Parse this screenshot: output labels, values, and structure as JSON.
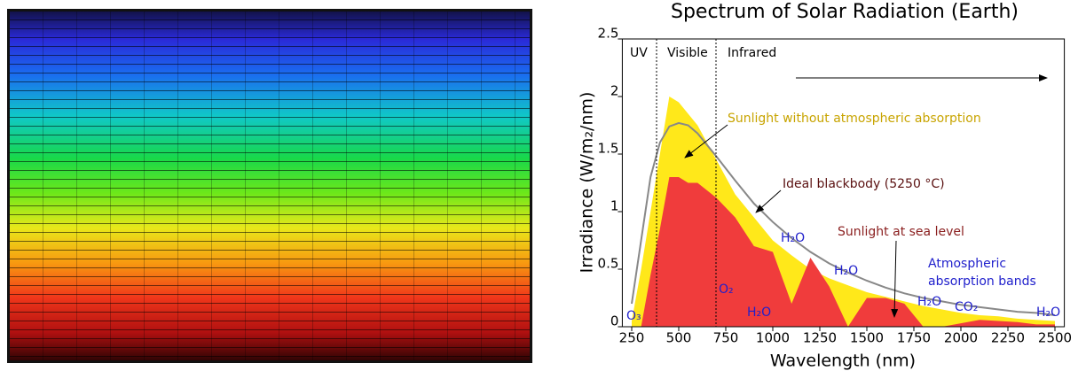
{
  "chart_data": {
    "type": "area",
    "title": "Spectrum of Solar Radiation (Earth)",
    "x_label": "Wavelength (nm)",
    "y_label": "Irradiance (W/m₂/nm)",
    "x": [
      250,
      300,
      350,
      400,
      450,
      500,
      550,
      600,
      700,
      800,
      900,
      1000,
      1100,
      1200,
      1300,
      1400,
      1500,
      1600,
      1700,
      1800,
      1900,
      2000,
      2100,
      2200,
      2300,
      2400,
      2500
    ],
    "series": [
      {
        "name": "Sunlight without atmospheric absorption",
        "color": "#ffe81a",
        "kind": "area",
        "values": [
          0.05,
          0.5,
          1.0,
          1.5,
          2.0,
          1.95,
          1.85,
          1.75,
          1.45,
          1.15,
          0.95,
          0.75,
          0.62,
          0.5,
          0.42,
          0.36,
          0.3,
          0.26,
          0.22,
          0.18,
          0.15,
          0.12,
          0.1,
          0.09,
          0.07,
          0.06,
          0.05
        ]
      },
      {
        "name": "Sunlight at sea level",
        "color": "#f03c3c",
        "kind": "area",
        "values": [
          0,
          0,
          0.45,
          0.85,
          1.3,
          1.3,
          1.25,
          1.25,
          1.12,
          0.95,
          0.7,
          0.65,
          0.2,
          0.6,
          0.35,
          0,
          0.25,
          0.25,
          0.2,
          0,
          0,
          0.03,
          0.06,
          0.05,
          0.04,
          0.02,
          0.02
        ]
      },
      {
        "name": "Ideal blackbody (5250 °C)",
        "color": "#888888",
        "kind": "line",
        "values": [
          0.2,
          0.75,
          1.3,
          1.6,
          1.74,
          1.77,
          1.75,
          1.68,
          1.48,
          1.27,
          1.07,
          0.91,
          0.77,
          0.65,
          0.55,
          0.47,
          0.4,
          0.34,
          0.29,
          0.25,
          0.22,
          0.19,
          0.17,
          0.15,
          0.13,
          0.12,
          0.1
        ]
      }
    ],
    "xlim": [
      200,
      2550
    ],
    "ylim": [
      0,
      2.5
    ],
    "xticks": [
      250,
      500,
      750,
      1000,
      1250,
      1500,
      1750,
      2000,
      2250,
      2500
    ],
    "yticks": [
      0,
      0.5,
      1,
      1.5,
      2,
      2.5
    ],
    "regions": [
      "UV",
      "Visible",
      "Infrared"
    ],
    "molecules": [
      "O₃",
      "O₂",
      "H₂O",
      "H₂O",
      "H₂O",
      "H₂O",
      "CO₂",
      "H₂O"
    ],
    "annotations": [
      "Atmospheric",
      "absorption bands"
    ]
  }
}
